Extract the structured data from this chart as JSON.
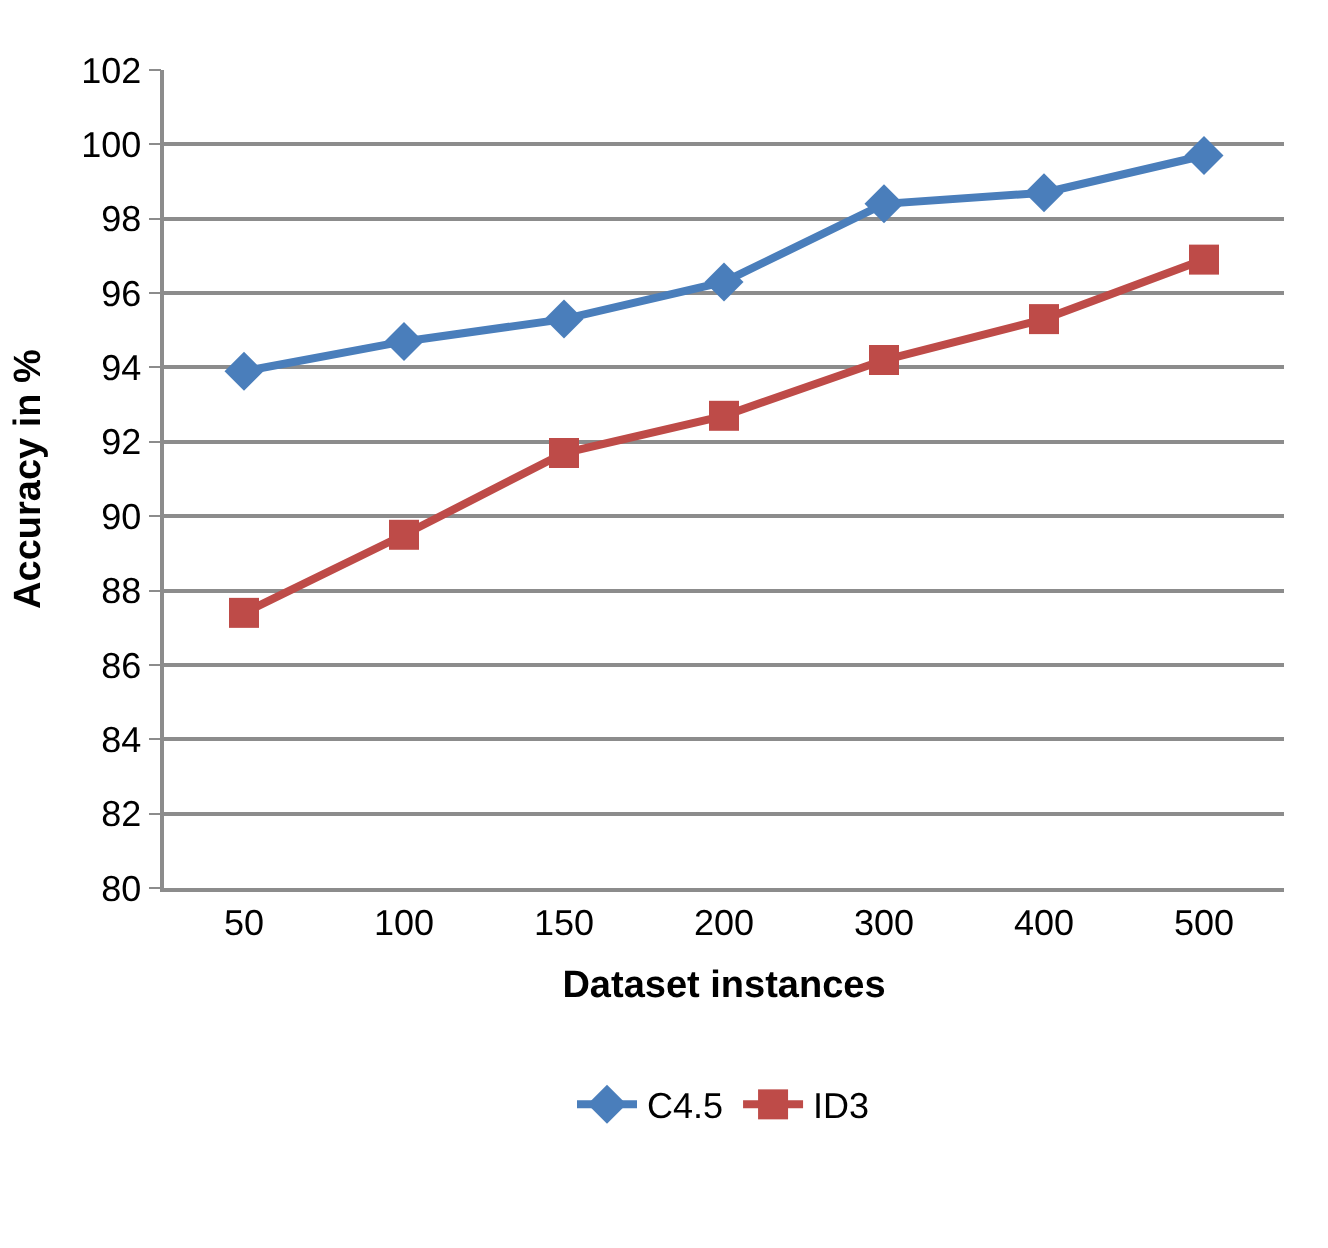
{
  "chart_data": {
    "type": "line",
    "xlabel": "Dataset instances",
    "ylabel": "Accuracy in %",
    "categories": [
      "50",
      "100",
      "150",
      "200",
      "300",
      "400",
      "500"
    ],
    "series": [
      {
        "name": "C4.5",
        "color": "#4a7ebb",
        "marker": "diamond",
        "values": [
          93.9,
          94.7,
          95.3,
          96.3,
          98.4,
          98.7,
          99.7
        ]
      },
      {
        "name": "ID3",
        "color": "#be4b48",
        "marker": "square",
        "values": [
          87.4,
          89.5,
          91.7,
          92.7,
          94.2,
          95.3,
          96.9
        ]
      }
    ],
    "ylim": [
      80,
      102
    ],
    "yticks": [
      80,
      82,
      84,
      86,
      88,
      90,
      92,
      94,
      96,
      98,
      100,
      102
    ],
    "grid": "y",
    "legend": "bottom"
  }
}
